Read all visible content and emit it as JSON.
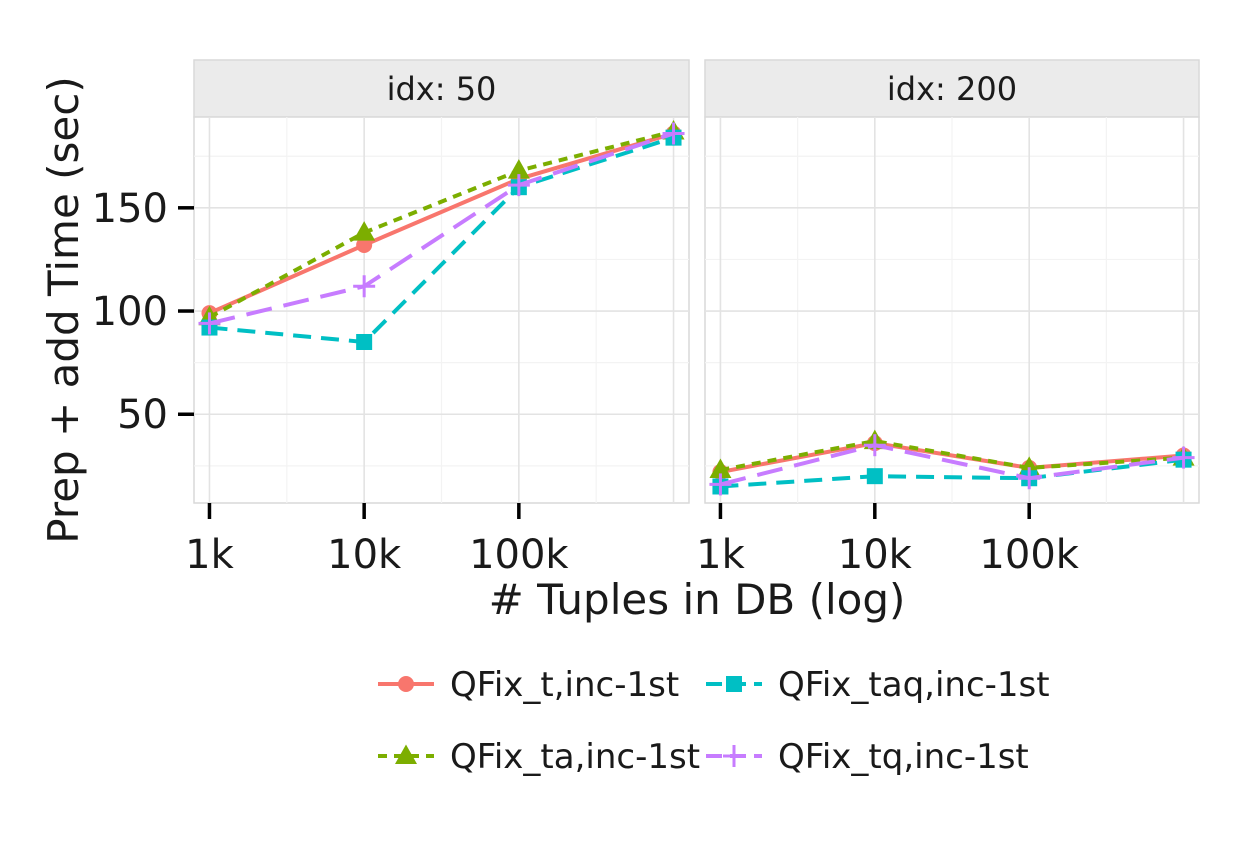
{
  "chart_data": {
    "type": "line",
    "xlabel": "# Tuples in DB (log)",
    "ylabel": "Prep + add Time (sec)",
    "x_scale": "log10",
    "x_values": [
      1000,
      10000,
      100000,
      1000000
    ],
    "x_ticks": [
      {
        "value": 1000,
        "label": "1k"
      },
      {
        "value": 10000,
        "label": "10k"
      },
      {
        "value": 100000,
        "label": "100k"
      }
    ],
    "y_ticks": [
      {
        "value": 50,
        "label": "50"
      },
      {
        "value": 100,
        "label": "100"
      },
      {
        "value": 150,
        "label": "150"
      }
    ],
    "ylim": [
      7,
      194
    ],
    "xlim_log10": [
      2.9,
      6.1
    ],
    "grid": true,
    "legend_position": "bottom",
    "series_styles": [
      {
        "name": "QFix_t,inc-1st",
        "color": "#F8766D",
        "dash": "solid",
        "marker": "circle"
      },
      {
        "name": "QFix_ta,inc-1st",
        "color": "#7CAE00",
        "dash": "dotted",
        "marker": "triangle"
      },
      {
        "name": "QFix_taq,inc-1st",
        "color": "#00BFC4",
        "dash": "dashed",
        "marker": "square"
      },
      {
        "name": "QFix_tq,inc-1st",
        "color": "#C77CFF",
        "dash": "longdash",
        "marker": "plus"
      }
    ],
    "facets": [
      {
        "title": "idx: 50",
        "series": [
          {
            "name": "QFix_t,inc-1st",
            "values": [
              99,
              132,
              164,
              186
            ]
          },
          {
            "name": "QFix_ta,inc-1st",
            "values": [
              97,
              138,
              168,
              187
            ]
          },
          {
            "name": "QFix_taq,inc-1st",
            "values": [
              92,
              85,
              160,
              184
            ]
          },
          {
            "name": "QFix_tq,inc-1st",
            "values": [
              94,
              112,
              161,
              186
            ]
          }
        ]
      },
      {
        "title": "idx: 200",
        "series": [
          {
            "name": "QFix_t,inc-1st",
            "values": [
              22,
              36,
              24,
              30
            ]
          },
          {
            "name": "QFix_ta,inc-1st",
            "values": [
              23,
              37,
              24,
              29
            ]
          },
          {
            "name": "QFix_taq,inc-1st",
            "values": [
              15,
              20,
              19,
              28
            ]
          },
          {
            "name": "QFix_tq,inc-1st",
            "values": [
              16,
              35,
              19,
              29
            ]
          }
        ]
      }
    ],
    "legend": [
      [
        "QFix_t,inc-1st",
        "QFix_taq,inc-1st"
      ],
      [
        "QFix_ta,inc-1st",
        "QFix_tq,inc-1st"
      ]
    ]
  }
}
